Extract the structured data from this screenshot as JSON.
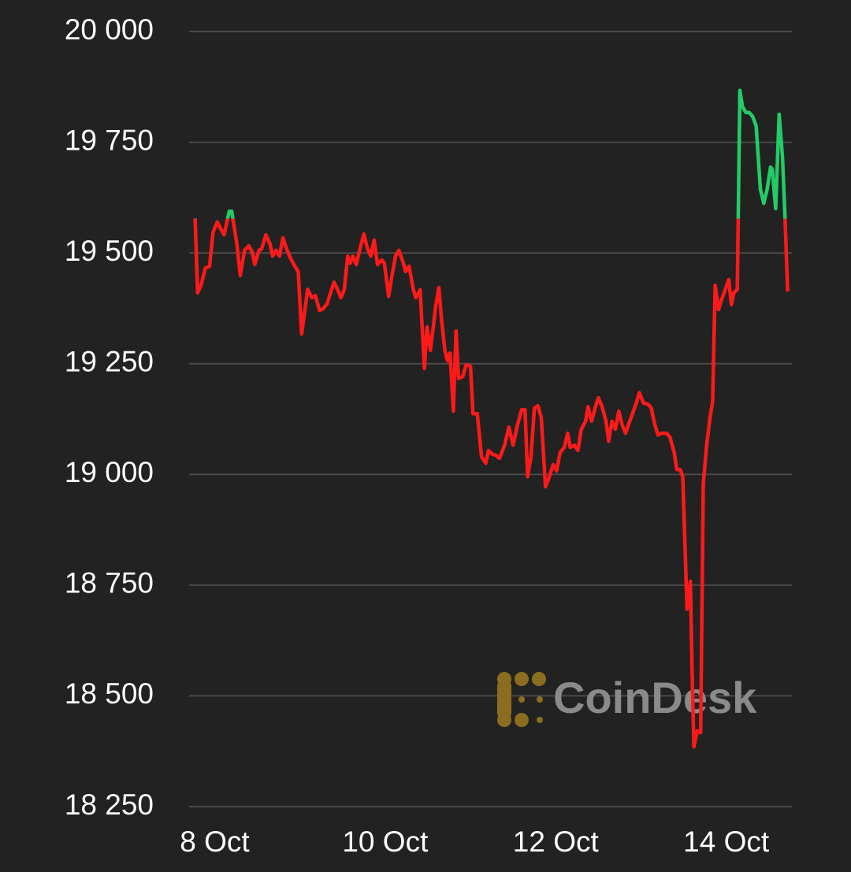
{
  "chart_data": {
    "type": "line",
    "watermark": "CoinDesk",
    "xlim": [
      7.7,
      14.77
    ],
    "xticks": [
      {
        "value": 8,
        "label": "8 Oct"
      },
      {
        "value": 10,
        "label": "10 Oct"
      },
      {
        "value": 12,
        "label": "12 Oct"
      },
      {
        "value": 14,
        "label": "14 Oct"
      }
    ],
    "ylim": [
      18250,
      20000
    ],
    "yticks": [
      {
        "value": 18250,
        "label": "18 250"
      },
      {
        "value": 18500,
        "label": "18 500"
      },
      {
        "value": 18750,
        "label": "18 750"
      },
      {
        "value": 19000,
        "label": "19 000"
      },
      {
        "value": 19250,
        "label": "19 250"
      },
      {
        "value": 19500,
        "label": "19 500"
      },
      {
        "value": 19750,
        "label": "19 750"
      },
      {
        "value": 20000,
        "label": "20 000"
      }
    ],
    "grid": true,
    "baseline": 19578,
    "up_color": "#22cc66",
    "down_color": "#ff1a1a",
    "x": [
      7.77,
      7.8,
      7.84,
      7.89,
      7.94,
      7.98,
      8.03,
      8.07,
      8.11,
      8.17,
      8.2,
      8.26,
      8.3,
      8.35,
      8.4,
      8.44,
      8.47,
      8.52,
      8.55,
      8.6,
      8.65,
      8.68,
      8.72,
      8.76,
      8.8,
      8.85,
      8.89,
      8.94,
      8.98,
      9.02,
      9.05,
      9.09,
      9.14,
      9.18,
      9.23,
      9.27,
      9.32,
      9.37,
      9.4,
      9.44,
      9.48,
      9.52,
      9.56,
      9.59,
      9.62,
      9.66,
      9.7,
      9.75,
      9.79,
      9.83,
      9.87,
      9.91,
      9.96,
      9.99,
      10.04,
      10.08,
      10.12,
      10.16,
      10.21,
      10.24,
      10.28,
      10.33,
      10.36,
      10.41,
      10.46,
      10.49,
      10.53,
      10.57,
      10.59,
      10.63,
      10.66,
      10.7,
      10.73,
      10.76,
      10.8,
      10.83,
      10.86,
      10.91,
      10.95,
      11.0,
      11.03,
      11.08,
      11.13,
      11.18,
      11.21,
      11.26,
      11.3,
      11.34,
      11.4,
      11.45,
      11.5,
      11.55,
      11.6,
      11.64,
      11.67,
      11.71,
      11.75,
      11.79,
      11.83,
      11.88,
      11.92,
      11.97,
      12.01,
      12.05,
      12.1,
      12.14,
      12.17,
      12.22,
      12.26,
      12.3,
      12.35,
      12.38,
      12.42,
      12.47,
      12.5,
      12.54,
      12.59,
      12.62,
      12.66,
      12.7,
      12.74,
      12.78,
      12.82,
      12.86,
      12.9,
      12.95,
      12.98,
      13.03,
      13.08,
      13.12,
      13.16,
      13.2,
      13.24,
      13.3,
      13.34,
      13.39,
      13.42,
      13.46,
      13.49,
      13.54,
      13.58,
      13.6,
      13.62,
      13.66,
      13.7,
      13.73,
      13.77,
      13.81,
      13.84,
      13.87,
      13.91,
      13.94,
      13.98,
      14.03,
      14.06,
      14.09,
      14.13,
      14.16,
      14.19,
      14.23,
      14.27,
      14.31,
      14.35,
      14.4,
      14.44,
      14.48,
      14.52,
      14.54,
      14.58,
      14.62,
      14.66,
      14.69,
      14.72
    ],
    "values": [
      19578,
      19410,
      19427,
      19466,
      19470,
      19546,
      19570,
      19555,
      19541,
      19594,
      19594,
      19520,
      19449,
      19506,
      19516,
      19502,
      19474,
      19506,
      19509,
      19541,
      19520,
      19493,
      19506,
      19493,
      19534,
      19506,
      19488,
      19470,
      19458,
      19317,
      19360,
      19418,
      19399,
      19404,
      19370,
      19374,
      19386,
      19417,
      19434,
      19418,
      19399,
      19417,
      19493,
      19477,
      19493,
      19474,
      19506,
      19543,
      19511,
      19493,
      19529,
      19474,
      19484,
      19477,
      19402,
      19449,
      19493,
      19506,
      19479,
      19458,
      19470,
      19417,
      19399,
      19417,
      19239,
      19333,
      19280,
      19342,
      19378,
      19422,
      19351,
      19280,
      19257,
      19274,
      19143,
      19324,
      19217,
      19221,
      19248,
      19244,
      19137,
      19137,
      19040,
      19025,
      19054,
      19045,
      19043,
      19036,
      19066,
      19107,
      19066,
      19111,
      19146,
      19146,
      18995,
      19040,
      19150,
      19155,
      19129,
      18972,
      18992,
      19022,
      19008,
      19049,
      19061,
      19093,
      19061,
      19066,
      19054,
      19102,
      19120,
      19153,
      19120,
      19155,
      19173,
      19155,
      19120,
      19075,
      19120,
      19102,
      19143,
      19111,
      19093,
      19116,
      19137,
      19164,
      19185,
      19161,
      19159,
      19150,
      19114,
      19089,
      19093,
      19093,
      19084,
      19049,
      19011,
      19011,
      18995,
      18696,
      18759,
      18551,
      18385,
      18421,
      18417,
      18977,
      19066,
      19129,
      19164,
      19427,
      19372,
      19392,
      19413,
      19440,
      19383,
      19410,
      19418,
      19867,
      19831,
      19817,
      19817,
      19808,
      19787,
      19644,
      19612,
      19644,
      19694,
      19689,
      19600,
      19813,
      19715,
      19578,
      19413
    ]
  }
}
